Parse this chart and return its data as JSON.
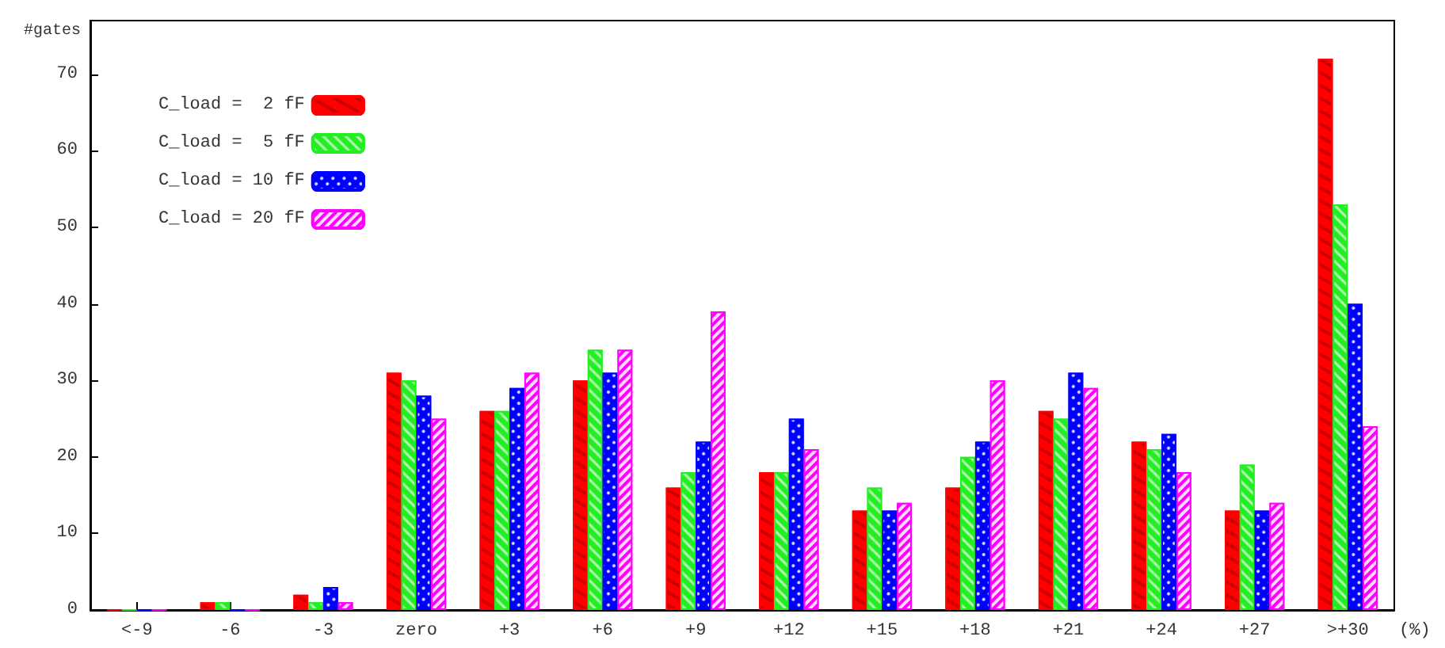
{
  "chart_data": {
    "type": "bar",
    "ylabel": "#gates",
    "xlabel": "(%)",
    "categories": [
      "<-9",
      "-6",
      "-3",
      "zero",
      "+3",
      "+6",
      "+9",
      "+12",
      "+15",
      "+18",
      "+21",
      "+24",
      "+27",
      ">+30"
    ],
    "series": [
      {
        "name": "C_load =  2 fF",
        "color": "#ff0000",
        "values": [
          0,
          1,
          2,
          31,
          26,
          30,
          16,
          18,
          13,
          16,
          26,
          22,
          13,
          72
        ]
      },
      {
        "name": "C_load =  5 fF",
        "color": "#22ee22",
        "values": [
          0,
          1,
          1,
          30,
          26,
          34,
          18,
          18,
          16,
          20,
          25,
          21,
          19,
          53
        ]
      },
      {
        "name": "C_load = 10 fF",
        "color": "#0000ff",
        "values": [
          0,
          0,
          3,
          28,
          29,
          31,
          22,
          25,
          13,
          22,
          31,
          23,
          13,
          40
        ]
      },
      {
        "name": "C_load = 20 fF",
        "color": "#ff00ff",
        "values": [
          0,
          0,
          1,
          25,
          31,
          34,
          39,
          21,
          14,
          30,
          29,
          18,
          14,
          24
        ]
      }
    ],
    "ylim": [
      0,
      77
    ],
    "yticks": [
      0,
      10,
      20,
      30,
      40,
      50,
      60,
      70
    ],
    "grid": false,
    "legend": "top left"
  }
}
